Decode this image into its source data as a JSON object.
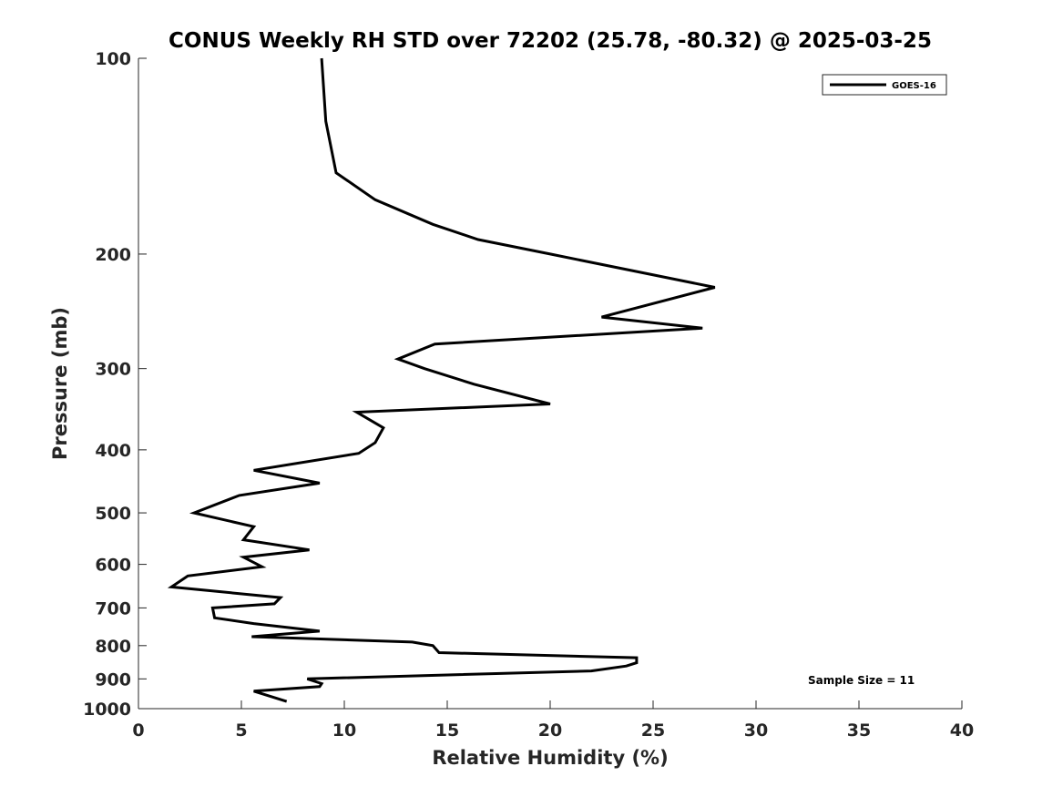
{
  "chart_data": {
    "type": "line",
    "title": "CONUS Weekly RH STD over 72202 (25.78, -80.32) @ 2025-03-25",
    "xlabel": "Relative Humidity (%)",
    "ylabel": "Pressure (mb)",
    "xlim": [
      0,
      40
    ],
    "ylim": [
      100,
      1000
    ],
    "y_scale": "log",
    "y_reversed": true,
    "x_ticks": [
      "0",
      "5",
      "10",
      "15",
      "20",
      "25",
      "30",
      "35",
      "40"
    ],
    "y_ticks": [
      "100",
      "200",
      "300",
      "400",
      "500",
      "600",
      "700",
      "800",
      "900",
      "1000"
    ],
    "legend": {
      "entries": [
        "GOES-16"
      ],
      "location": "top-right"
    },
    "annotation": "Sample Size = 11",
    "series": [
      {
        "name": "GOES-16",
        "color": "#000000",
        "points": [
          [
            8.9,
            100
          ],
          [
            9.1,
            125
          ],
          [
            9.6,
            150
          ],
          [
            11.5,
            165
          ],
          [
            14.3,
            180
          ],
          [
            16.5,
            190
          ],
          [
            20,
            200
          ],
          [
            28,
            225
          ],
          [
            22.5,
            250
          ],
          [
            27.4,
            260
          ],
          [
            14.4,
            275
          ],
          [
            12.6,
            290
          ],
          [
            13.9,
            300
          ],
          [
            16.3,
            317
          ],
          [
            20,
            340
          ],
          [
            10.6,
            350
          ],
          [
            11.9,
            370
          ],
          [
            11.5,
            390
          ],
          [
            10.7,
            405
          ],
          [
            5.6,
            430
          ],
          [
            8.8,
            450
          ],
          [
            4.9,
            470
          ],
          [
            2.7,
            500
          ],
          [
            5.6,
            525
          ],
          [
            5.1,
            550
          ],
          [
            8.3,
            570
          ],
          [
            5.1,
            585
          ],
          [
            6,
            605
          ],
          [
            2.4,
            625
          ],
          [
            1.6,
            650
          ],
          [
            6.9,
            675
          ],
          [
            6.6,
            690
          ],
          [
            3.6,
            700
          ],
          [
            3.7,
            725
          ],
          [
            5.6,
            740
          ],
          [
            8.8,
            760
          ],
          [
            5.5,
            775
          ],
          [
            13.3,
            790
          ],
          [
            14.3,
            800
          ],
          [
            14.6,
            820
          ],
          [
            24.2,
            835
          ],
          [
            24.2,
            850
          ],
          [
            23.7,
            860
          ],
          [
            22.0,
            875
          ],
          [
            8.2,
            900
          ],
          [
            8.9,
            915
          ],
          [
            8.8,
            925
          ],
          [
            5.6,
            940
          ],
          [
            7.2,
            975
          ]
        ]
      }
    ]
  }
}
